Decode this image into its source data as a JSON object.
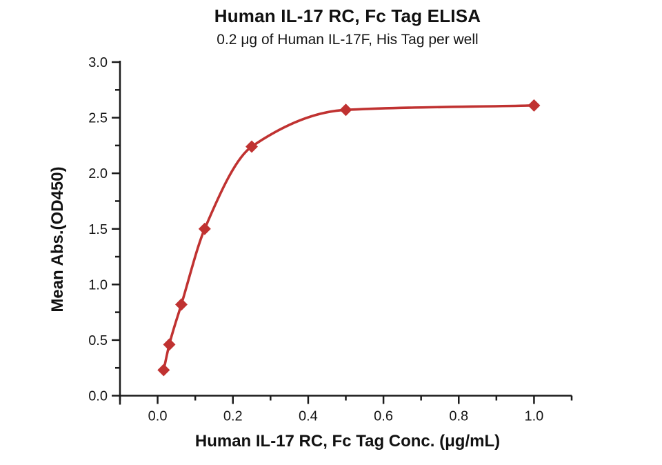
{
  "chart_data": {
    "type": "scatter",
    "title": "Human IL-17 RC, Fc Tag ELISA",
    "subtitle": "0.2 μg of Human IL-17F, His Tag per well",
    "xlabel": "Human IL-17 RC, Fc Tag Conc. (μg/mL)",
    "ylabel": "Mean Abs.(OD450)",
    "series": [
      {
        "name": "Human IL-17 RC, Fc Tag",
        "x": [
          0.016,
          0.031,
          0.063,
          0.125,
          0.25,
          0.5,
          1.0
        ],
        "y": [
          0.23,
          0.46,
          0.82,
          1.5,
          2.24,
          2.57,
          2.61
        ],
        "marker": "diamond",
        "line": "smooth-fit-curve",
        "color": "#C03231"
      }
    ],
    "xlim": [
      -0.1,
      1.1
    ],
    "ylim": [
      0,
      3.0
    ],
    "x_major_ticks": [
      0.0,
      0.2,
      0.4,
      0.6,
      0.8,
      1.0
    ],
    "x_tick_labels": [
      "0.0",
      "0.2",
      "0.4",
      "0.6",
      "0.8",
      "1.0"
    ],
    "x_minor_step": 0.1,
    "y_major_ticks": [
      0.0,
      0.5,
      1.0,
      1.5,
      2.0,
      2.5,
      3.0
    ],
    "y_tick_labels": [
      "0.0",
      "0.5",
      "1.0",
      "1.5",
      "2.0",
      "2.5",
      "3.0"
    ],
    "y_minor_step": 0.25,
    "grid": "off",
    "legend": "none",
    "axis_color": "#1a1a1a",
    "background": "#ffffff"
  }
}
